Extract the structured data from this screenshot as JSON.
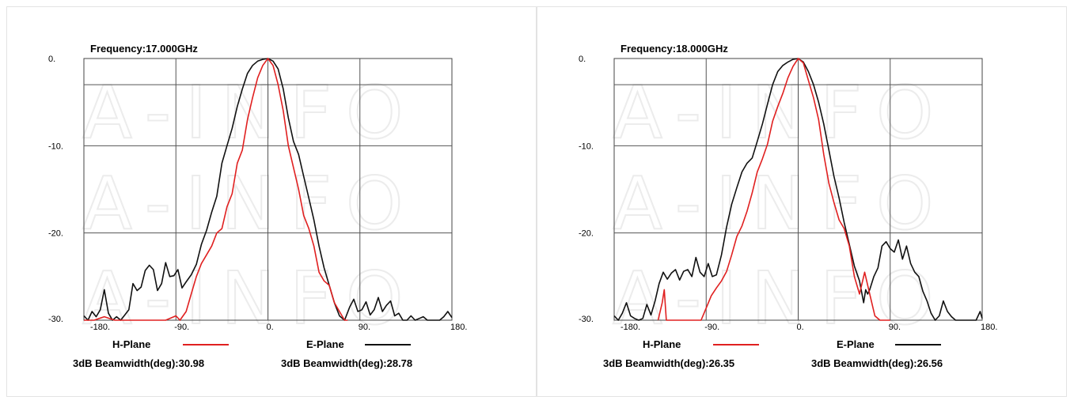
{
  "chart_data": [
    {
      "type": "line",
      "title": "Frequency:17.000GHz",
      "xlim": [
        -180,
        180
      ],
      "ylim": [
        -30,
        0
      ],
      "xticks": [
        "-180.",
        "-90.",
        "0.",
        "90.",
        "180."
      ],
      "yticks": [
        "0.",
        "-10.",
        "-20.",
        "-30."
      ],
      "grid": true,
      "reference_level_db": -3,
      "series": [
        {
          "name": "H-Plane",
          "color": "#e02020",
          "beamwidth_label": "3dB Beamwidth(deg):30.98",
          "x": [
            -180,
            -170,
            -160,
            -150,
            -140,
            -130,
            -120,
            -110,
            -100,
            -90,
            -86,
            -80,
            -75,
            -70,
            -65,
            -60,
            -55,
            -50,
            -45,
            -40,
            -35,
            -30,
            -25,
            -20,
            -15,
            -10,
            -5,
            0,
            5,
            10,
            15,
            20,
            25,
            30,
            35,
            40,
            45,
            50,
            55,
            60,
            65,
            70,
            75,
            78
          ],
          "y": [
            -30,
            -30,
            -29.6,
            -30,
            -30,
            -30,
            -30,
            -30,
            -30,
            -29.5,
            -30,
            -29,
            -27,
            -25,
            -23.5,
            -22.5,
            -21.5,
            -20,
            -19.5,
            -17,
            -15.5,
            -12,
            -10.5,
            -7,
            -4.5,
            -2.2,
            -0.8,
            0,
            -0.8,
            -3,
            -6,
            -10,
            -12.5,
            -15,
            -18,
            -19.5,
            -21.5,
            -24.5,
            -25.5,
            -26,
            -28,
            -29,
            -30,
            -30
          ]
        },
        {
          "name": "E-Plane",
          "color": "#111111",
          "beamwidth_label": "3dB Beamwidth(deg):28.78",
          "x": [
            -180,
            -176,
            -172,
            -168,
            -164,
            -160,
            -156,
            -152,
            -148,
            -144,
            -140,
            -136,
            -132,
            -128,
            -124,
            -120,
            -116,
            -112,
            -108,
            -104,
            -100,
            -96,
            -92,
            -88,
            -84,
            -80,
            -75,
            -70,
            -65,
            -60,
            -55,
            -50,
            -45,
            -40,
            -35,
            -30,
            -25,
            -20,
            -15,
            -10,
            -5,
            0,
            5,
            10,
            15,
            20,
            25,
            30,
            35,
            40,
            45,
            50,
            55,
            60,
            65,
            70,
            75,
            80,
            84,
            88,
            92,
            96,
            100,
            104,
            108,
            112,
            116,
            120,
            124,
            128,
            132,
            136,
            140,
            144,
            148,
            152,
            156,
            160,
            164,
            168,
            172,
            176,
            180
          ],
          "y": [
            -29.5,
            -30,
            -29,
            -29.6,
            -28.8,
            -26.5,
            -29.2,
            -30,
            -29.6,
            -30,
            -29.4,
            -28.8,
            -25.8,
            -26.6,
            -26.2,
            -24.3,
            -23.7,
            -24.2,
            -26.6,
            -25.8,
            -23.4,
            -25,
            -24.9,
            -24.2,
            -26.3,
            -25.6,
            -24.8,
            -23.6,
            -21.3,
            -19.7,
            -17.6,
            -15.8,
            -12,
            -10,
            -8,
            -5.5,
            -3.5,
            -1.7,
            -0.8,
            -0.3,
            -0.1,
            0,
            -0.3,
            -1.2,
            -3.5,
            -6.8,
            -9.5,
            -11,
            -13.5,
            -16,
            -18.5,
            -21.5,
            -24,
            -26,
            -28,
            -29.5,
            -30,
            -28.5,
            -27.6,
            -29,
            -28.8,
            -27.9,
            -29.4,
            -28.8,
            -27.4,
            -29,
            -28.3,
            -27.8,
            -29.5,
            -29.2,
            -30,
            -30,
            -29.5,
            -30,
            -29.8,
            -29.6,
            -30,
            -30,
            -30,
            -30,
            -29.6,
            -29,
            -29.7
          ]
        }
      ]
    },
    {
      "type": "line",
      "title": "Frequency:18.000GHz",
      "xlim": [
        -180,
        180
      ],
      "ylim": [
        -30,
        0
      ],
      "xticks": [
        "-180.",
        "-90.",
        "0.",
        "90.",
        "180."
      ],
      "yticks": [
        "0.",
        "-10.",
        "-20.",
        "-30."
      ],
      "grid": true,
      "reference_level_db": -3,
      "series": [
        {
          "name": "H-Plane",
          "color": "#e02020",
          "beamwidth_label": "3dB Beamwidth(deg):26.35",
          "x": [
            -137,
            -133,
            -131,
            -129,
            -110,
            -95,
            -90,
            -85,
            -80,
            -75,
            -70,
            -65,
            -60,
            -55,
            -50,
            -45,
            -40,
            -35,
            -30,
            -25,
            -20,
            -15,
            -10,
            -5,
            0,
            5,
            10,
            15,
            20,
            25,
            30,
            35,
            40,
            45,
            50,
            55,
            60,
            65,
            70,
            75,
            80,
            85,
            90
          ],
          "y": [
            -30,
            -28,
            -26.5,
            -30,
            -30,
            -30,
            -28.6,
            -27.2,
            -26.3,
            -25.5,
            -24.4,
            -22.5,
            -20.4,
            -19.2,
            -17.5,
            -15.4,
            -13,
            -11.5,
            -9.8,
            -7.2,
            -5.5,
            -4,
            -2.2,
            -0.9,
            0,
            -0.5,
            -2.5,
            -4.5,
            -7,
            -11,
            -14.3,
            -16.5,
            -18.5,
            -19.5,
            -21.5,
            -25,
            -27,
            -24.5,
            -27,
            -29.5,
            -30,
            -30,
            -30
          ]
        },
        {
          "name": "E-Plane",
          "color": "#111111",
          "beamwidth_label": "3dB Beamwidth(deg):26.56",
          "x": [
            -180,
            -176,
            -172,
            -168,
            -164,
            -160,
            -156,
            -152,
            -148,
            -144,
            -140,
            -136,
            -132,
            -128,
            -124,
            -120,
            -116,
            -112,
            -108,
            -104,
            -100,
            -96,
            -92,
            -88,
            -84,
            -80,
            -75,
            -70,
            -65,
            -60,
            -55,
            -50,
            -45,
            -40,
            -35,
            -30,
            -25,
            -20,
            -15,
            -10,
            -5,
            0,
            5,
            10,
            15,
            20,
            25,
            30,
            35,
            40,
            45,
            50,
            55,
            60,
            64,
            66,
            68,
            70,
            74,
            78,
            82,
            86,
            90,
            94,
            98,
            102,
            106,
            110,
            114,
            118,
            122,
            126,
            130,
            134,
            138,
            142,
            146,
            150,
            154,
            158,
            162,
            166,
            170,
            174,
            178,
            180
          ],
          "y": [
            -29.5,
            -30,
            -29.2,
            -28,
            -29.5,
            -29.8,
            -30,
            -29.8,
            -28.2,
            -29.4,
            -27.8,
            -25.8,
            -24.5,
            -25.3,
            -24.6,
            -24.2,
            -25.4,
            -24.4,
            -24.2,
            -25,
            -22.8,
            -24.5,
            -25,
            -23.5,
            -25,
            -24.8,
            -22.5,
            -19.3,
            -16.7,
            -14.8,
            -13,
            -12,
            -11.4,
            -9.5,
            -7.5,
            -5.2,
            -3,
            -1.5,
            -0.8,
            -0.4,
            -0.1,
            0,
            -0.4,
            -1.5,
            -3,
            -5,
            -7.5,
            -10.5,
            -13.5,
            -16,
            -18.8,
            -21.3,
            -23.8,
            -25.5,
            -28,
            -26.5,
            -27,
            -26.5,
            -25,
            -24,
            -21.5,
            -21,
            -21.8,
            -22.2,
            -20.8,
            -23,
            -21.5,
            -23.5,
            -24.5,
            -25,
            -26.7,
            -27.8,
            -29.2,
            -30,
            -29.5,
            -27.8,
            -29,
            -29.6,
            -30,
            -30,
            -30,
            -30,
            -30,
            -30,
            -29,
            -29.8
          ]
        }
      ]
    }
  ]
}
